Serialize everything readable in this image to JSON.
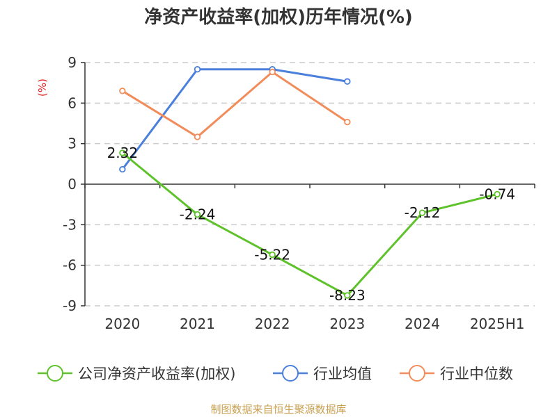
{
  "chart_data": {
    "type": "line",
    "title": "净资产收益率(加权)历年情况(%)",
    "ylabel": "(%)",
    "categories": [
      "2020",
      "2021",
      "2022",
      "2023",
      "2024",
      "2025H1"
    ],
    "ylim": [
      -9,
      9
    ],
    "yticks": [
      9,
      6,
      3,
      0,
      -3,
      -6,
      -9
    ],
    "grid": true,
    "legend_position": "bottom",
    "series": [
      {
        "name": "公司净资产收益率(加权)",
        "color": "#5ec22a",
        "values": [
          2.32,
          -2.24,
          -5.22,
          -8.23,
          -2.12,
          -0.74
        ],
        "labels": [
          "2.32",
          "-2.24",
          "-5.22",
          "-8.23",
          "-2.12",
          "-0.74"
        ]
      },
      {
        "name": "行业均值",
        "color": "#4a7fdc",
        "values": [
          1.1,
          8.5,
          8.5,
          7.6,
          null,
          null
        ]
      },
      {
        "name": "行业中位数",
        "color": "#f28c5a",
        "values": [
          6.9,
          3.5,
          8.3,
          4.6,
          null,
          null
        ]
      }
    ]
  },
  "source": "制图数据来自恒生聚源数据库"
}
